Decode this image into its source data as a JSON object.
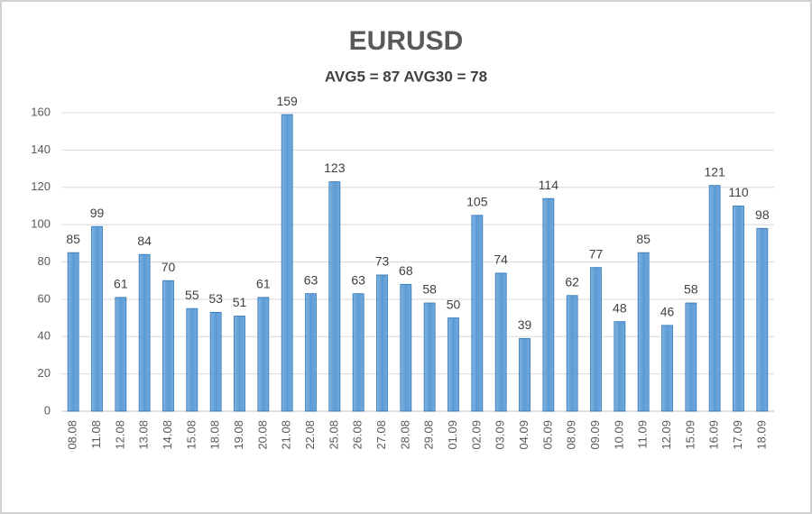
{
  "chart_data": {
    "type": "bar",
    "title": "EURUSD",
    "subtitle": "AVG5 = 87 AVG30 = 78",
    "categories": [
      "08.08",
      "11.08",
      "12.08",
      "13.08",
      "14.08",
      "15.08",
      "18.08",
      "19.08",
      "20.08",
      "21.08",
      "22.08",
      "25.08",
      "26.08",
      "27.08",
      "28.08",
      "29.08",
      "01.09",
      "02.09",
      "03.09",
      "04.09",
      "05.09",
      "08.09",
      "09.09",
      "10.09",
      "11.09",
      "12.09",
      "15.09",
      "16.09",
      "17.09",
      "18.09"
    ],
    "values": [
      85,
      99,
      61,
      84,
      70,
      55,
      53,
      51,
      61,
      159,
      63,
      123,
      63,
      73,
      68,
      58,
      50,
      105,
      74,
      39,
      114,
      62,
      77,
      48,
      85,
      46,
      58,
      121,
      110,
      98
    ],
    "color": "#5b9bd5",
    "ylim": [
      0,
      160
    ],
    "yticks": [
      0,
      20,
      40,
      60,
      80,
      100,
      120,
      140,
      160
    ],
    "grid": true
  }
}
